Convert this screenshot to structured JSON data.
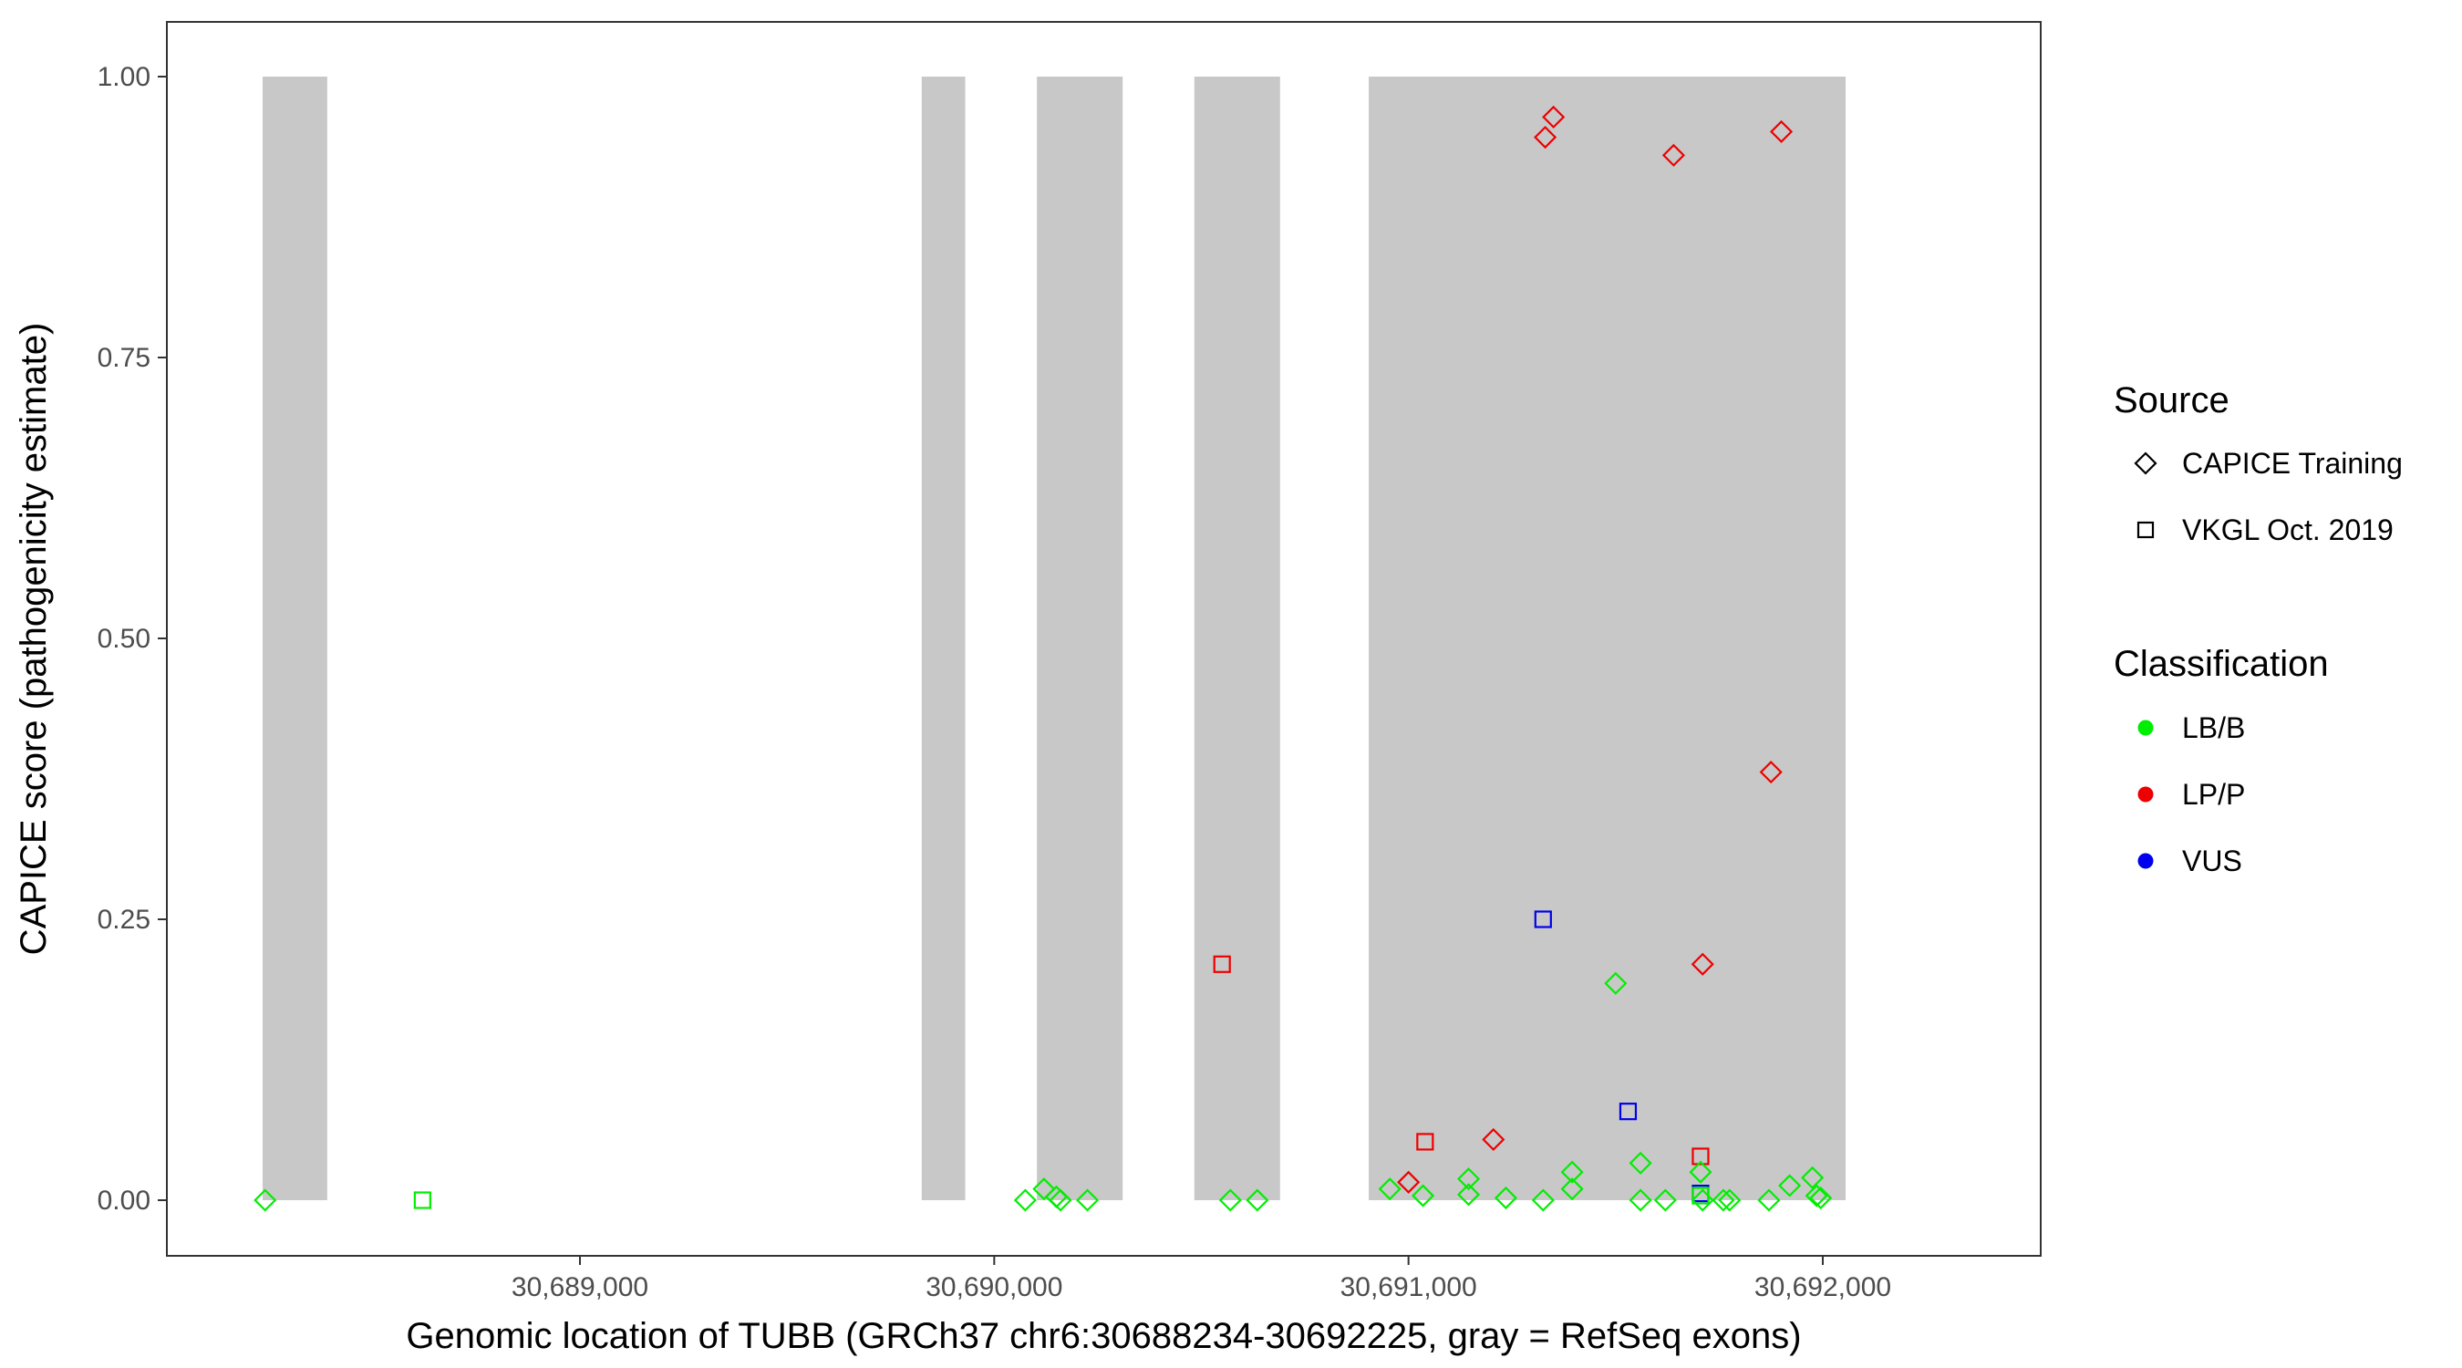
{
  "chart_data": {
    "type": "scatter",
    "xlabel": "Genomic location of TUBB (GRCh37 chr6:30688234-30692225, gray = RefSeq exons)",
    "ylabel": "CAPICE score (pathogenicity estimate)",
    "xlim": [
      30688050,
      30692400
    ],
    "ylim": [
      -0.047,
      1.1
    ],
    "x_ticks": [
      30689000,
      30690000,
      30691000,
      30692000
    ],
    "x_tick_labels": [
      "30,689,000",
      "30,690,000",
      "30,691,000",
      "30,692,000"
    ],
    "y_ticks": [
      0,
      0.25,
      0.5,
      0.75,
      1.0
    ],
    "y_tick_labels": [
      "0.00",
      "0.25",
      "0.50",
      "0.75",
      "1.00"
    ],
    "grid": false,
    "exon_color": "#c8c8c8",
    "exons": [
      [
        30688234,
        30688390
      ],
      [
        30689825,
        30689930
      ],
      [
        30690103,
        30690310
      ],
      [
        30690483,
        30690690
      ],
      [
        30690904,
        30692055
      ]
    ],
    "legend_position": "right",
    "legend_source_title": "Source",
    "legend_classification_title": "Classification",
    "sources": [
      {
        "label": "CAPICE Training",
        "shape": "diamond"
      },
      {
        "label": "VKGL Oct. 2019",
        "shape": "square"
      }
    ],
    "classifications": [
      {
        "label": "LB/B",
        "color": "#00ee00"
      },
      {
        "label": "LP/P",
        "color": "#ee0000"
      },
      {
        "label": "VUS",
        "color": "#0000ee"
      }
    ],
    "points": [
      {
        "x": 30688240,
        "y": 0.0,
        "source": "CAPICE Training",
        "class": "LB/B"
      },
      {
        "x": 30688620,
        "y": 0.0,
        "source": "VKGL Oct. 2019",
        "class": "LB/B"
      },
      {
        "x": 30690075,
        "y": 0.0,
        "source": "CAPICE Training",
        "class": "LB/B"
      },
      {
        "x": 30690120,
        "y": 0.01,
        "source": "CAPICE Training",
        "class": "LB/B"
      },
      {
        "x": 30690150,
        "y": 0.003,
        "source": "CAPICE Training",
        "class": "LB/B"
      },
      {
        "x": 30690160,
        "y": 0.0,
        "source": "CAPICE Training",
        "class": "LB/B"
      },
      {
        "x": 30690225,
        "y": 0.0,
        "source": "CAPICE Training",
        "class": "LB/B"
      },
      {
        "x": 30690550,
        "y": 0.21,
        "source": "VKGL Oct. 2019",
        "class": "LP/P"
      },
      {
        "x": 30690570,
        "y": 0.0,
        "source": "CAPICE Training",
        "class": "LB/B"
      },
      {
        "x": 30690635,
        "y": 0.0,
        "source": "CAPICE Training",
        "class": "LB/B"
      },
      {
        "x": 30690955,
        "y": 0.01,
        "source": "CAPICE Training",
        "class": "LB/B"
      },
      {
        "x": 30691000,
        "y": 0.016,
        "source": "CAPICE Training",
        "class": "LP/P"
      },
      {
        "x": 30691035,
        "y": 0.004,
        "source": "CAPICE Training",
        "class": "LB/B"
      },
      {
        "x": 30691040,
        "y": 0.052,
        "source": "VKGL Oct. 2019",
        "class": "LP/P"
      },
      {
        "x": 30691145,
        "y": 0.019,
        "source": "CAPICE Training",
        "class": "LB/B"
      },
      {
        "x": 30691145,
        "y": 0.005,
        "source": "CAPICE Training",
        "class": "LB/B"
      },
      {
        "x": 30691205,
        "y": 0.054,
        "source": "CAPICE Training",
        "class": "LP/P"
      },
      {
        "x": 30691235,
        "y": 0.002,
        "source": "CAPICE Training",
        "class": "LB/B"
      },
      {
        "x": 30691325,
        "y": 0.0,
        "source": "CAPICE Training",
        "class": "LB/B"
      },
      {
        "x": 30691325,
        "y": 0.25,
        "source": "VKGL Oct. 2019",
        "class": "VUS"
      },
      {
        "x": 30691330,
        "y": 0.946,
        "source": "CAPICE Training",
        "class": "LP/P"
      },
      {
        "x": 30691350,
        "y": 0.964,
        "source": "CAPICE Training",
        "class": "LP/P"
      },
      {
        "x": 30691395,
        "y": 0.025,
        "source": "CAPICE Training",
        "class": "LB/B"
      },
      {
        "x": 30691395,
        "y": 0.01,
        "source": "CAPICE Training",
        "class": "LB/B"
      },
      {
        "x": 30691500,
        "y": 0.193,
        "source": "CAPICE Training",
        "class": "LB/B"
      },
      {
        "x": 30691530,
        "y": 0.079,
        "source": "VKGL Oct. 2019",
        "class": "VUS"
      },
      {
        "x": 30691560,
        "y": 0.033,
        "source": "CAPICE Training",
        "class": "LB/B"
      },
      {
        "x": 30691560,
        "y": 0.0,
        "source": "CAPICE Training",
        "class": "LB/B"
      },
      {
        "x": 30691620,
        "y": 0.0,
        "source": "CAPICE Training",
        "class": "LB/B"
      },
      {
        "x": 30691640,
        "y": 0.93,
        "source": "CAPICE Training",
        "class": "LP/P"
      },
      {
        "x": 30691710,
        "y": 0.21,
        "source": "CAPICE Training",
        "class": "LP/P"
      },
      {
        "x": 30691705,
        "y": 0.039,
        "source": "VKGL Oct. 2019",
        "class": "LP/P"
      },
      {
        "x": 30691705,
        "y": 0.025,
        "source": "CAPICE Training",
        "class": "LB/B"
      },
      {
        "x": 30691705,
        "y": 0.006,
        "source": "VKGL Oct. 2019",
        "class": "VUS"
      },
      {
        "x": 30691705,
        "y": 0.004,
        "source": "VKGL Oct. 2019",
        "class": "LB/B"
      },
      {
        "x": 30691710,
        "y": 0.0,
        "source": "CAPICE Training",
        "class": "LB/B"
      },
      {
        "x": 30691760,
        "y": 0.0,
        "source": "CAPICE Training",
        "class": "LB/B"
      },
      {
        "x": 30691775,
        "y": 0.0,
        "source": "CAPICE Training",
        "class": "LB/B"
      },
      {
        "x": 30691870,
        "y": 0.0,
        "source": "CAPICE Training",
        "class": "LB/B"
      },
      {
        "x": 30691875,
        "y": 0.381,
        "source": "CAPICE Training",
        "class": "LP/P"
      },
      {
        "x": 30691900,
        "y": 0.951,
        "source": "CAPICE Training",
        "class": "LP/P"
      },
      {
        "x": 30691920,
        "y": 0.013,
        "source": "CAPICE Training",
        "class": "LB/B"
      },
      {
        "x": 30691975,
        "y": 0.02,
        "source": "CAPICE Training",
        "class": "LB/B"
      },
      {
        "x": 30691985,
        "y": 0.004,
        "source": "CAPICE Training",
        "class": "LB/B"
      },
      {
        "x": 30691995,
        "y": 0.002,
        "source": "CAPICE Training",
        "class": "LB/B"
      }
    ]
  }
}
